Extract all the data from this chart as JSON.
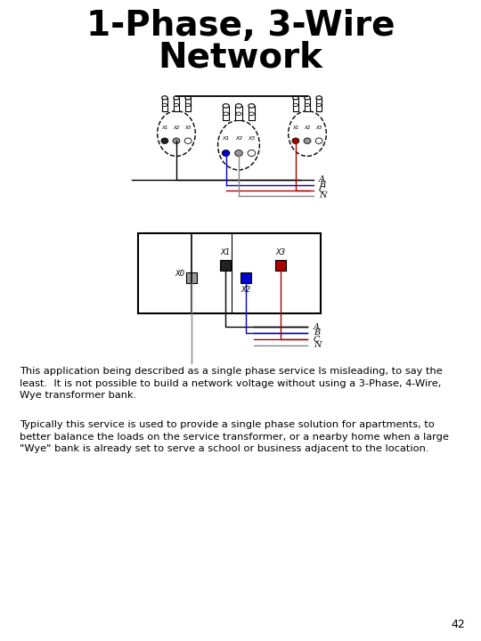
{
  "title_line1": "1-Phase, 3-Wire",
  "title_line2": "Network",
  "title_fontsize": 28,
  "title_fontweight": "bold",
  "bg_color": "#ffffff",
  "text_color": "#000000",
  "wire_black": "#000000",
  "wire_blue": "#0000cc",
  "wire_red": "#aa0000",
  "wire_gray": "#888888",
  "dot_black": "#222222",
  "dot_blue": "#0000cc",
  "dot_red": "#aa0000",
  "dot_gray": "#999999",
  "body_text1": "This application being described as a single phase service Is misleading, to say the\nleast.  It is not possible to build a network voltage without using a 3-Phase, 4-Wire,\nWye transformer bank.",
  "body_text2": "Typically this service is used to provide a single phase solution for apartments, to\nbetter balance the loads on the service transformer, or a nearby home when a large\n\"Wye\" bank is already set to serve a school or business adjacent to the location.",
  "page_number": "42",
  "body_fontsize": 8.2
}
